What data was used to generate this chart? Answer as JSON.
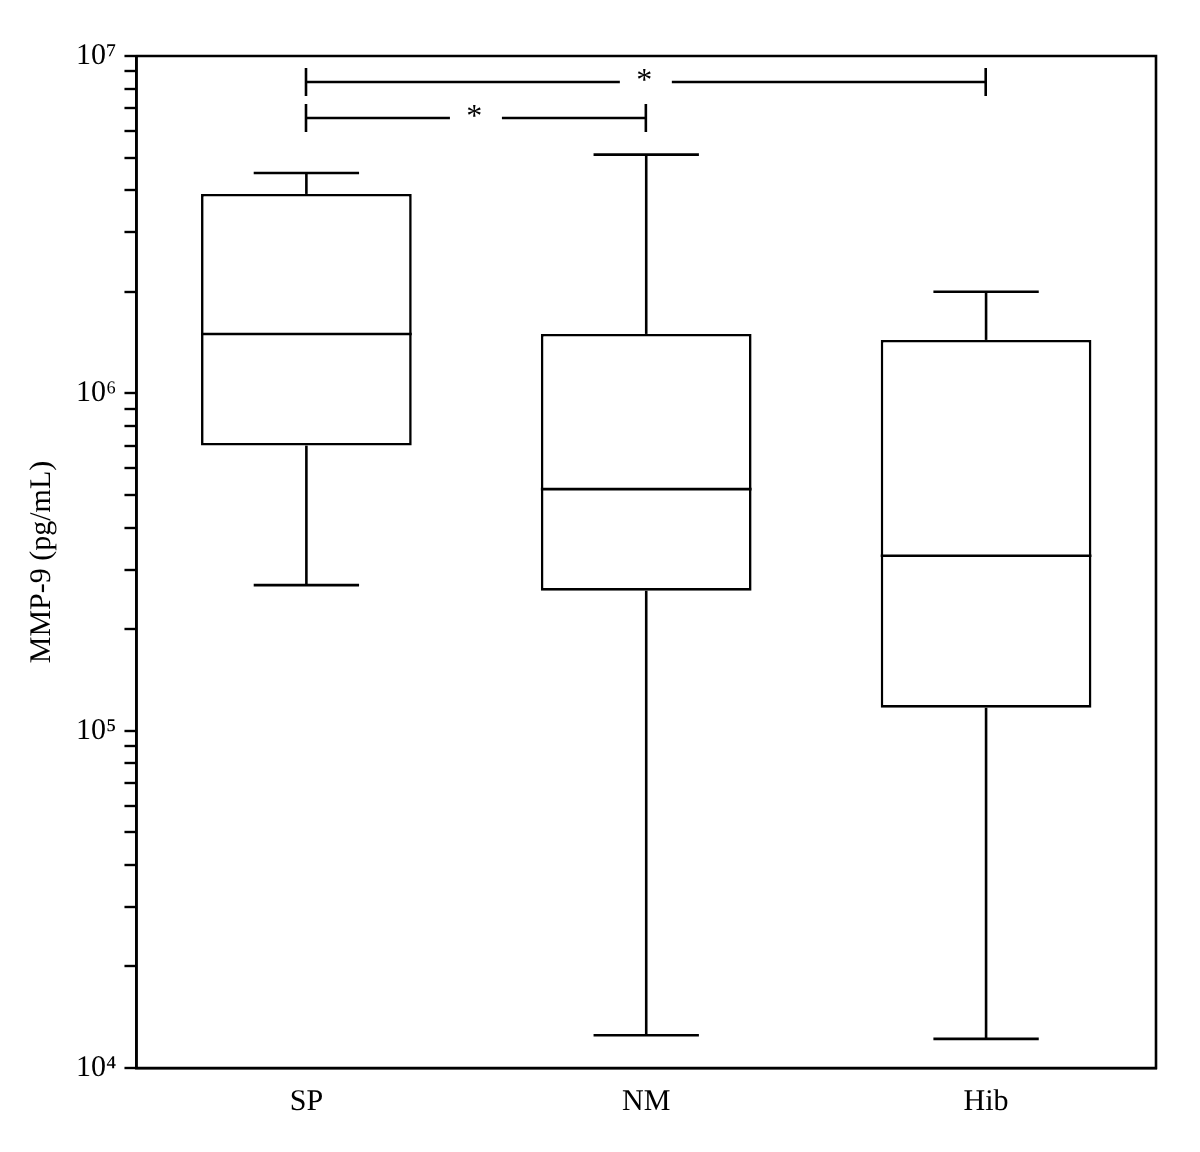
{
  "chart_data": {
    "type": "box",
    "ylabel": "MMP-9 (pg/mL)",
    "categories": [
      "SP",
      "NM",
      "Hib"
    ],
    "boxes": [
      {
        "low": 270000,
        "q1": 700000,
        "median": 1500000,
        "q3": 3900000,
        "high": 4500000
      },
      {
        "low": 12500,
        "q1": 260000,
        "median": 520000,
        "q3": 1500000,
        "high": 5100000
      },
      {
        "low": 12200,
        "q1": 117000,
        "median": 330000,
        "q3": 1440000,
        "high": 2000000
      }
    ],
    "log": true,
    "ylim": [
      10000,
      10000000
    ],
    "yticks": [
      {
        "value": 10000,
        "label": "10⁴"
      },
      {
        "value": 20000,
        "label": null
      },
      {
        "value": 30000,
        "label": null
      },
      {
        "value": 40000,
        "label": null
      },
      {
        "value": 50000,
        "label": null
      },
      {
        "value": 60000,
        "label": null
      },
      {
        "value": 70000,
        "label": null
      },
      {
        "value": 80000,
        "label": null
      },
      {
        "value": 90000,
        "label": null
      },
      {
        "value": 100000,
        "label": "10⁵"
      },
      {
        "value": 200000,
        "label": null
      },
      {
        "value": 300000,
        "label": null
      },
      {
        "value": 400000,
        "label": null
      },
      {
        "value": 500000,
        "label": null
      },
      {
        "value": 600000,
        "label": null
      },
      {
        "value": 700000,
        "label": null
      },
      {
        "value": 800000,
        "label": null
      },
      {
        "value": 900000,
        "label": null
      },
      {
        "value": 1000000,
        "label": "10⁶"
      },
      {
        "value": 2000000,
        "label": null
      },
      {
        "value": 3000000,
        "label": null
      },
      {
        "value": 4000000,
        "label": null
      },
      {
        "value": 5000000,
        "label": null
      },
      {
        "value": 6000000,
        "label": null
      },
      {
        "value": 7000000,
        "label": null
      },
      {
        "value": 8000000,
        "label": null
      },
      {
        "value": 9000000,
        "label": null
      },
      {
        "value": 10000000,
        "label": "10⁷"
      }
    ],
    "grid": false,
    "legend": false,
    "annotations": [
      "*",
      "*"
    ]
  }
}
